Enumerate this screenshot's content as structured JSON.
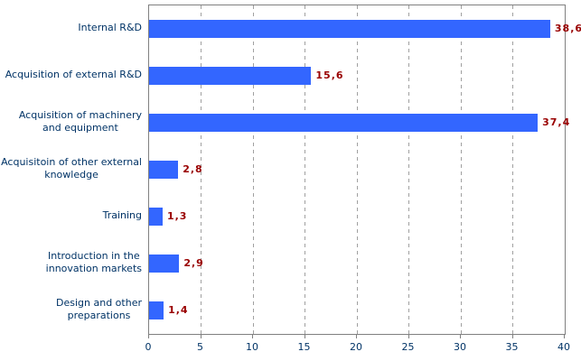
{
  "chart_data": {
    "type": "bar",
    "orientation": "horizontal",
    "title": "",
    "xlabel": "",
    "ylabel": "",
    "xlim": [
      0,
      40
    ],
    "grid": "vertical-dashed",
    "legend": "none",
    "categories": [
      "Internal R&D",
      "Acquisition of external R&D",
      "Acquisition of machinery and equipment",
      "Acquisitoin of other external knowledge",
      "Training",
      "Introduction in the innovation markets",
      "Design and other preparations"
    ],
    "rows": [
      {
        "label_lines": [
          "Internal R&D"
        ],
        "value": 38.6,
        "value_label": "38,6"
      },
      {
        "label_lines": [
          "Acquisition of external R&D"
        ],
        "value": 15.6,
        "value_label": "15,6"
      },
      {
        "label_lines": [
          "Acquisition of machinery",
          "and equipment"
        ],
        "value": 37.4,
        "value_label": "37,4"
      },
      {
        "label_lines": [
          "Acquisitoin of other external",
          "knowledge"
        ],
        "value": 2.8,
        "value_label": "2,8"
      },
      {
        "label_lines": [
          "Training"
        ],
        "value": 1.3,
        "value_label": "1,3"
      },
      {
        "label_lines": [
          "Introduction in the",
          "innovation markets"
        ],
        "value": 2.9,
        "value_label": "2,9"
      },
      {
        "label_lines": [
          "Design and other",
          "preparations"
        ],
        "value": 1.4,
        "value_label": "1,4"
      }
    ],
    "x_ticks": [
      "0",
      "5",
      "10",
      "15",
      "20",
      "25",
      "30",
      "35",
      "40"
    ],
    "colors": {
      "bar": "#3366FF",
      "category_label": "#003366",
      "value_label": "#990000",
      "axis_label": "#003366",
      "plot_border": "#808080",
      "gridline": "#A0A0A0",
      "background": "#FFFFFF"
    }
  }
}
